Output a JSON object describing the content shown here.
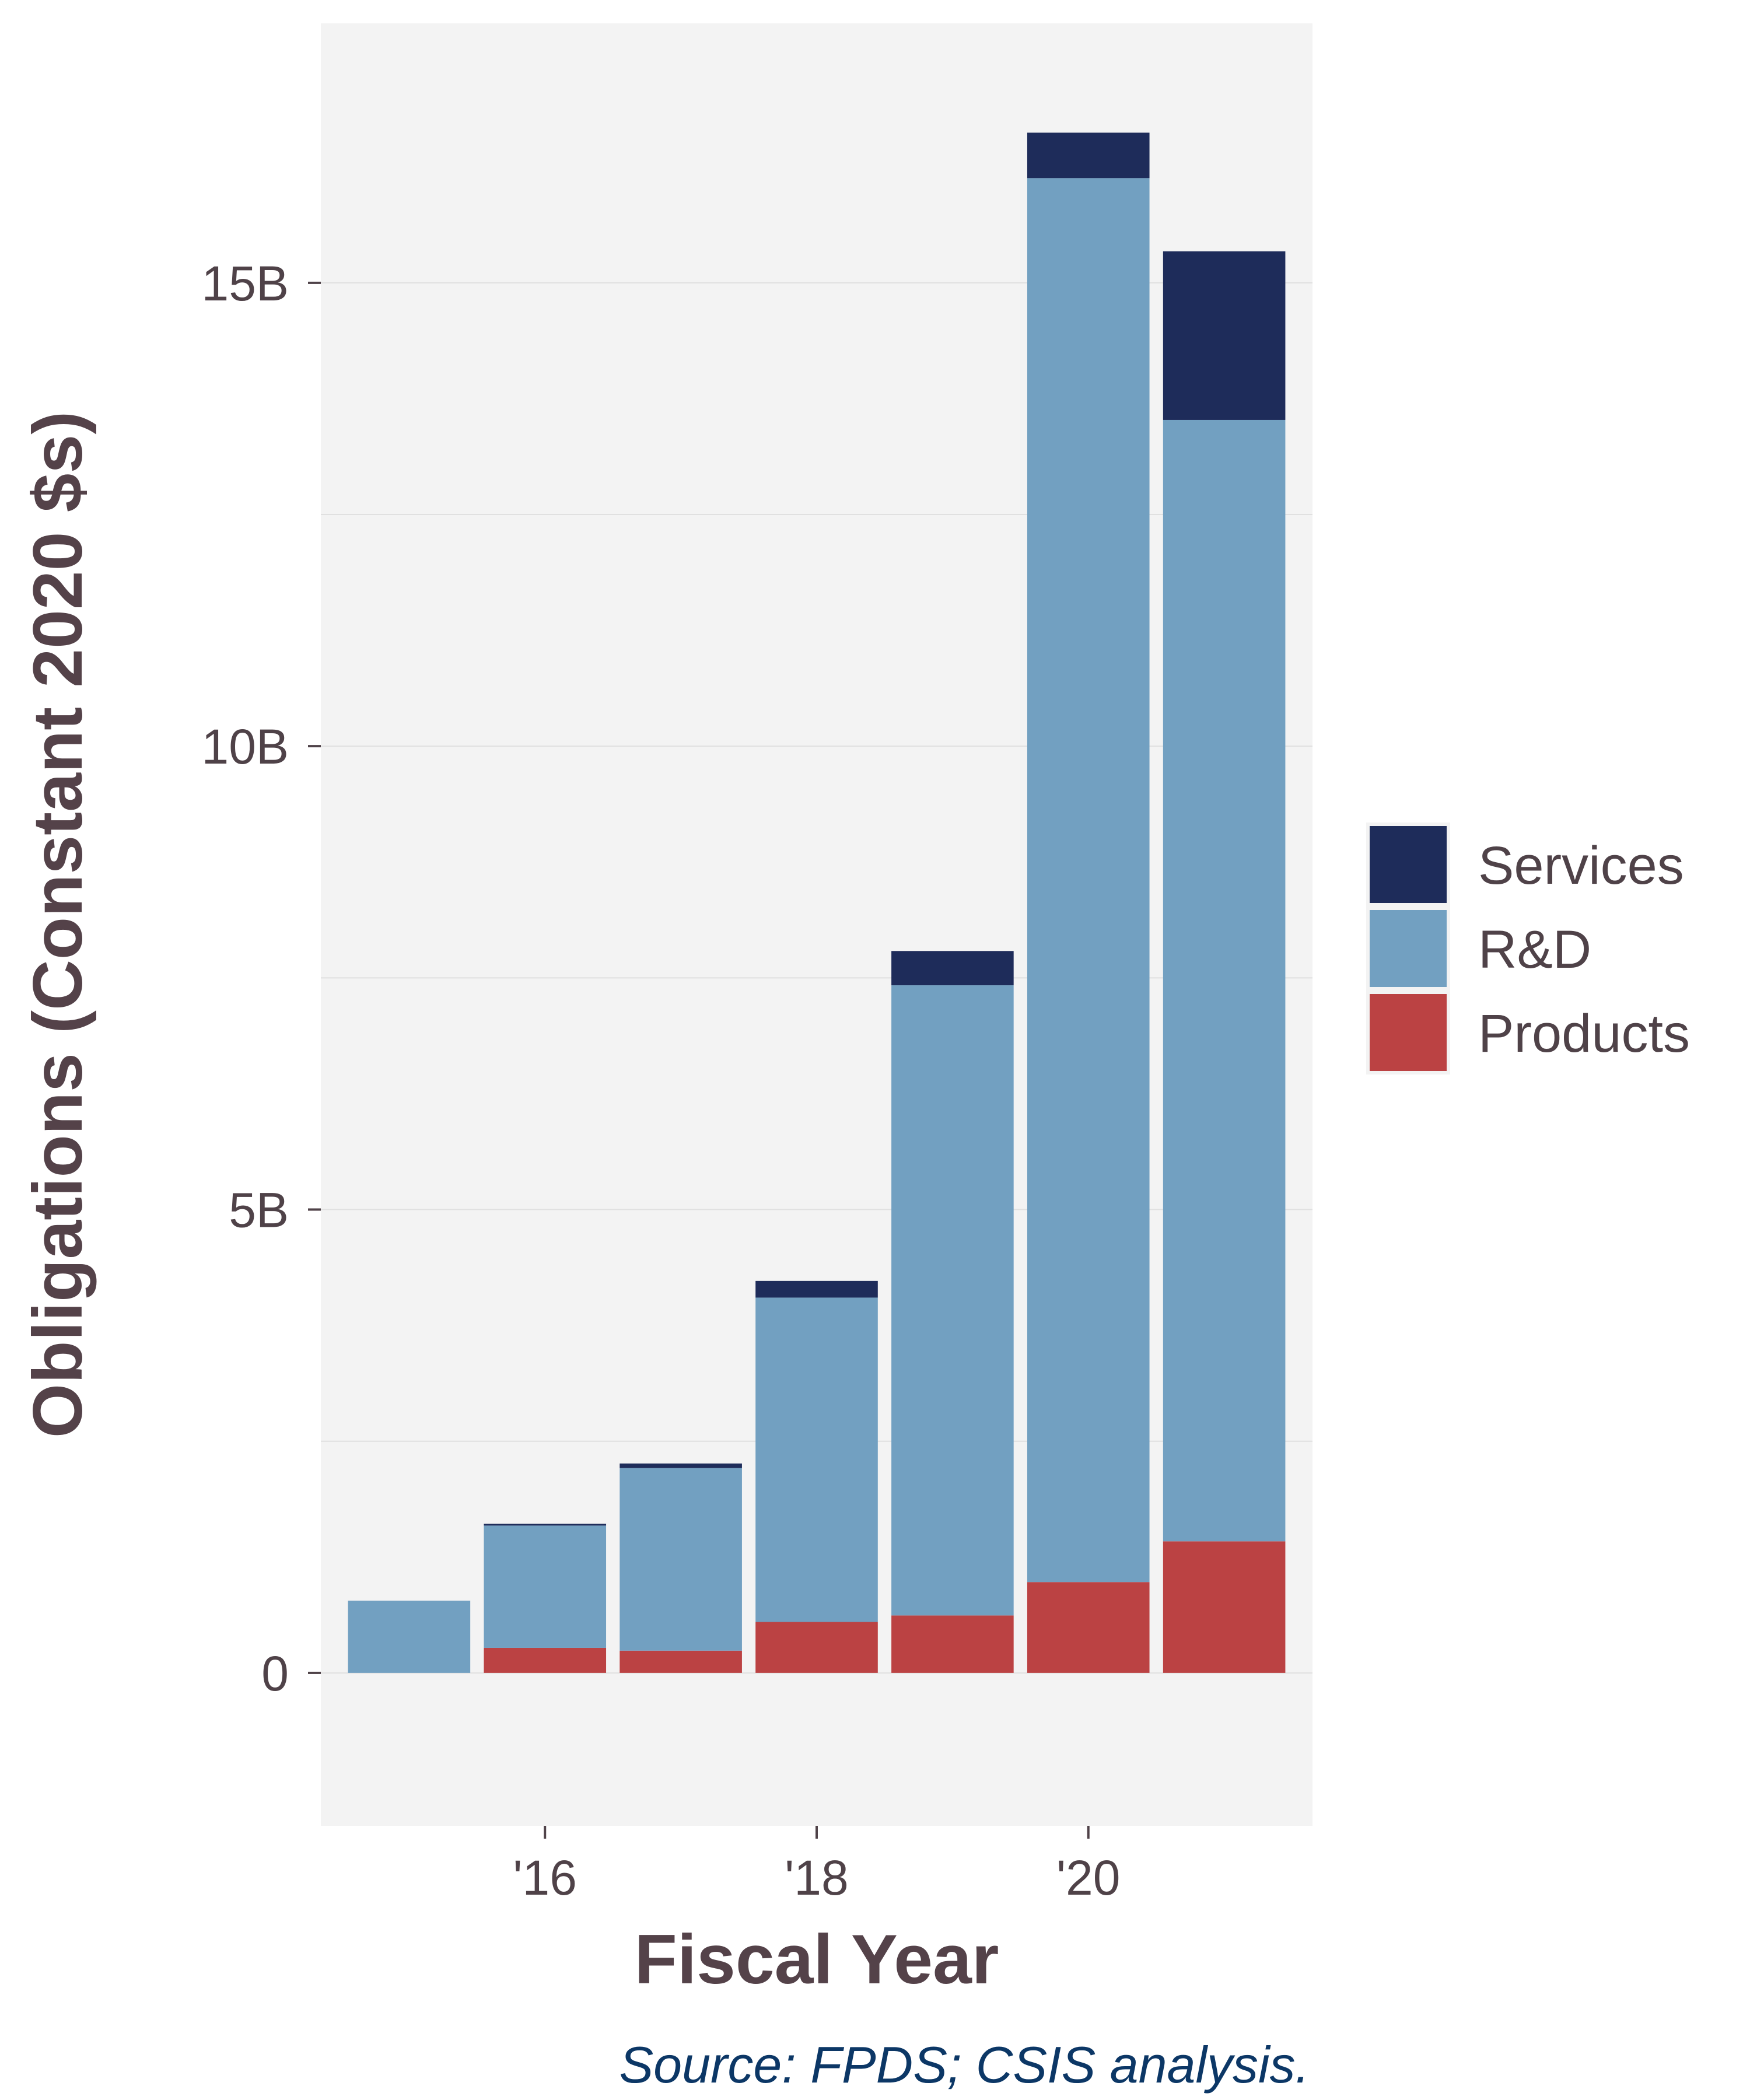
{
  "chart_data": {
    "type": "bar",
    "stacked": true,
    "x": [
      2015,
      2016,
      2017,
      2018,
      2019,
      2020,
      2021
    ],
    "x_tick_values": [
      2016,
      2018,
      2020
    ],
    "x_tick_labels": [
      "'16",
      "'18",
      "'20"
    ],
    "y_tick_values": [
      0,
      5000000000,
      10000000000,
      15000000000
    ],
    "y_tick_labels": [
      "0",
      "5B",
      "10B",
      "15B"
    ],
    "ylim": [
      -1650000000,
      17800000000
    ],
    "xlim": [
      2014.35,
      2021.65
    ],
    "xlabel": "Fiscal Year",
    "ylabel": "Obligations (Constant 2020 $s)",
    "caption": "Source: FPDS; CSIS analysis.",
    "grid": true,
    "legend_position": "right",
    "legend_order": [
      "Services",
      "R&D",
      "Products"
    ],
    "series": [
      {
        "name": "Products",
        "color": "#bb4243",
        "values": [
          0,
          270000000,
          240000000,
          550000000,
          620000000,
          980000000,
          1420000000
        ]
      },
      {
        "name": "R&D",
        "color": "#72a0c1",
        "values": [
          780000000,
          1320000000,
          1970000000,
          3500000000,
          6800000000,
          15150000000,
          12100000000
        ]
      },
      {
        "name": "Services",
        "color": "#1e2c5a",
        "values": [
          0,
          20000000,
          50000000,
          180000000,
          370000000,
          490000000,
          1820000000
        ]
      }
    ]
  }
}
